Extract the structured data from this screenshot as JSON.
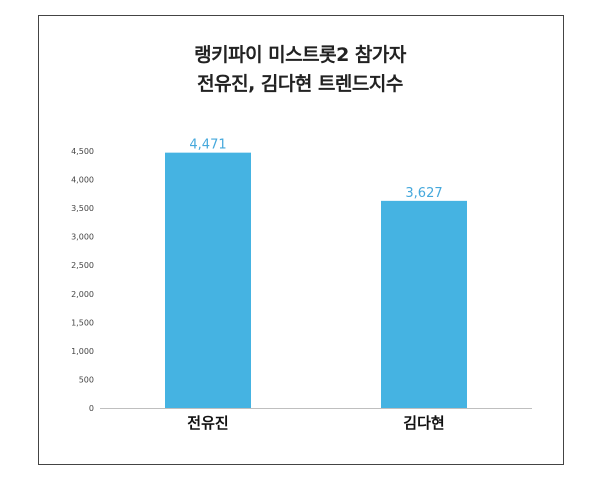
{
  "chart_data": {
    "type": "bar",
    "title_lines": [
      "랭키파이 미스트롯2 참가자",
      "전유진, 김다현 트렌드지수"
    ],
    "categories": [
      "전유진",
      "김다현"
    ],
    "values": [
      4471,
      3627
    ],
    "value_labels": [
      "4,471",
      "3,627"
    ],
    "yticks": [
      0,
      500,
      1000,
      1500,
      2000,
      2500,
      3000,
      3500,
      4000,
      4500
    ],
    "ytick_labels": [
      "0",
      "500",
      "1,000",
      "1,500",
      "2,000",
      "2,500",
      "3,000",
      "3,500",
      "4,000",
      "4,500"
    ],
    "ylim": [
      0,
      4500
    ],
    "grid": false,
    "bar_color": "#45b3e2",
    "label_color": "#45a8dc"
  }
}
